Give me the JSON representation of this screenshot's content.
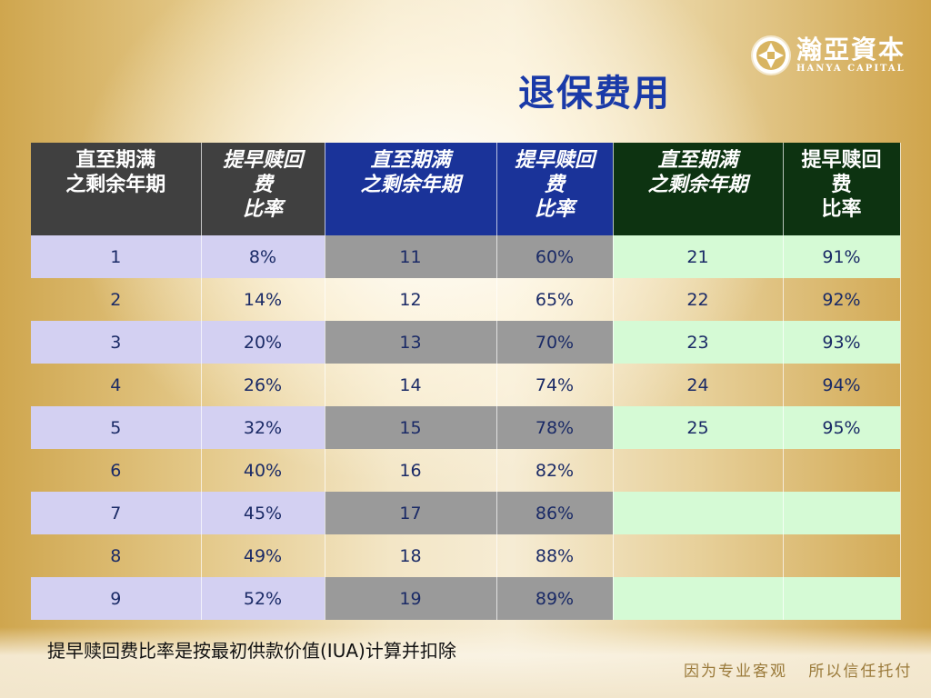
{
  "logo": {
    "icon": "aperture-logo-icon",
    "name_cn": "瀚亞資本",
    "name_en": "HANYA CAPITAL"
  },
  "title": "退保费用",
  "table": {
    "headers": [
      "直至期满\n之剩余年期",
      "提早赎回\n费\n比率",
      "直至期满\n之剩余年期",
      "提早赎回\n费\n比率",
      "直至期满\n之剩余年期",
      "提早赎回\n费\n比率"
    ],
    "header_colors": [
      "#404040",
      "#1a3399",
      "#0d3311"
    ],
    "rows": [
      [
        "1",
        "8%",
        "11",
        "60%",
        "21",
        "91%"
      ],
      [
        "2",
        "14%",
        "12",
        "65%",
        "22",
        "92%"
      ],
      [
        "3",
        "20%",
        "13",
        "70%",
        "23",
        "93%"
      ],
      [
        "4",
        "26%",
        "14",
        "74%",
        "24",
        "94%"
      ],
      [
        "5",
        "32%",
        "15",
        "78%",
        "25",
        "95%"
      ],
      [
        "6",
        "40%",
        "16",
        "82%",
        "",
        ""
      ],
      [
        "7",
        "45%",
        "17",
        "86%",
        "",
        ""
      ],
      [
        "8",
        "49%",
        "18",
        "88%",
        "",
        ""
      ],
      [
        "9",
        "52%",
        "19",
        "89%",
        "",
        ""
      ]
    ]
  },
  "footnote": "提早赎回费比率是按最初供款价值(IUA)计算并扣除",
  "slogan": [
    "因为专业客观",
    "所以信任托付"
  ]
}
